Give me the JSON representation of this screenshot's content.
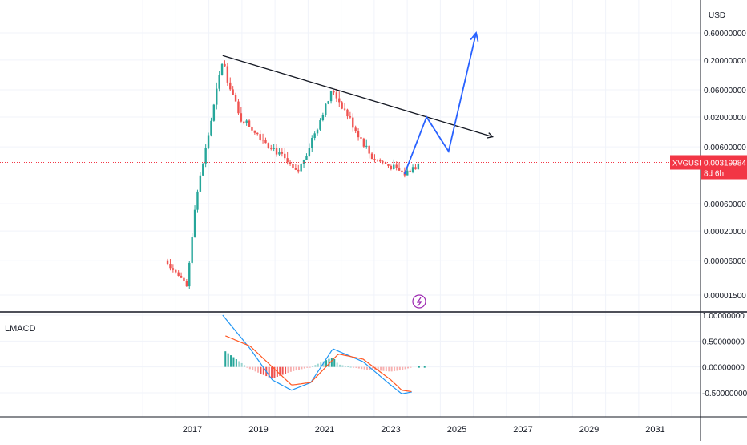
{
  "price_pane": {
    "currency_label": "USD",
    "tick_labels": [
      "0.60000000",
      "0.20000000",
      "0.06000000",
      "0.02000000",
      "0.00600000",
      "0.00060000",
      "0.00020000",
      "0.00006000",
      "0.00001500"
    ],
    "symbol": "XVGUSD",
    "last_price": "0.00319984",
    "countdown": "8d 6h",
    "symbol_color": "#f23645",
    "up_color": "#26a69a",
    "down_color": "#ef5350"
  },
  "indicator_pane": {
    "title": "LMACD",
    "tick_labels": [
      "1.00000000",
      "0.50000000",
      "0.00000000",
      "-0.50000000"
    ],
    "macd_color": "#2196f3",
    "signal_color": "#ff5722"
  },
  "time_axis": {
    "labels": [
      "2017",
      "2019",
      "2021",
      "2023",
      "2025",
      "2027",
      "2029",
      "2031"
    ]
  },
  "chart_data": [
    {
      "type": "candlestick",
      "symbol": "XVGUSD",
      "y_scale": "log",
      "y_ticks": [
        0.6,
        0.2,
        0.06,
        0.02,
        0.006,
        0.0006,
        0.0002,
        6e-05,
        1.5e-05
      ],
      "x_range": [
        "2015-09",
        "2031-12"
      ],
      "approx_price_path": [
        {
          "date": "2016-04",
          "price": 6e-05
        },
        {
          "date": "2016-11",
          "price": 2e-05
        },
        {
          "date": "2017-02",
          "price": 0.0006
        },
        {
          "date": "2017-06",
          "price": 0.006
        },
        {
          "date": "2017-12",
          "price": 0.2
        },
        {
          "date": "2018-06",
          "price": 0.02
        },
        {
          "date": "2019-06",
          "price": 0.006
        },
        {
          "date": "2020-03",
          "price": 0.002
        },
        {
          "date": "2021-04",
          "price": 0.06
        },
        {
          "date": "2022-06",
          "price": 0.004
        },
        {
          "date": "2023-06",
          "price": 0.002
        },
        {
          "date": "2023-11",
          "price": 0.0032
        }
      ],
      "last_value": 0.00319984,
      "trendline": {
        "start": {
          "date": "2017-12",
          "price": 0.24
        },
        "end": {
          "date": "2026-02",
          "price": 0.009
        }
      },
      "projection": [
        {
          "date": "2023-06",
          "price": 0.002
        },
        {
          "date": "2024-02",
          "price": 0.02
        },
        {
          "date": "2024-10",
          "price": 0.005
        },
        {
          "date": "2025-08",
          "price": 0.6
        }
      ]
    },
    {
      "type": "line",
      "name": "LMACD",
      "ylim": [
        -0.7,
        1.0
      ],
      "series": [
        {
          "x": [
            "2017-12",
            "2018-10",
            "2019-06",
            "2020-01",
            "2020-08",
            "2021-04",
            "2022-03",
            "2023-01",
            "2023-05",
            "2023-09"
          ],
          "values": [
            1.0,
            0.35,
            -0.25,
            -0.45,
            -0.3,
            0.35,
            0.1,
            -0.35,
            -0.52,
            -0.48
          ]
        },
        {
          "x": [
            "2018-01",
            "2018-10",
            "2019-06",
            "2020-01",
            "2020-08",
            "2021-06",
            "2022-03",
            "2023-01",
            "2023-05",
            "2023-09"
          ],
          "values": [
            0.6,
            0.4,
            0.0,
            -0.35,
            -0.3,
            0.25,
            0.15,
            -0.25,
            -0.45,
            -0.48
          ]
        }
      ]
    }
  ]
}
